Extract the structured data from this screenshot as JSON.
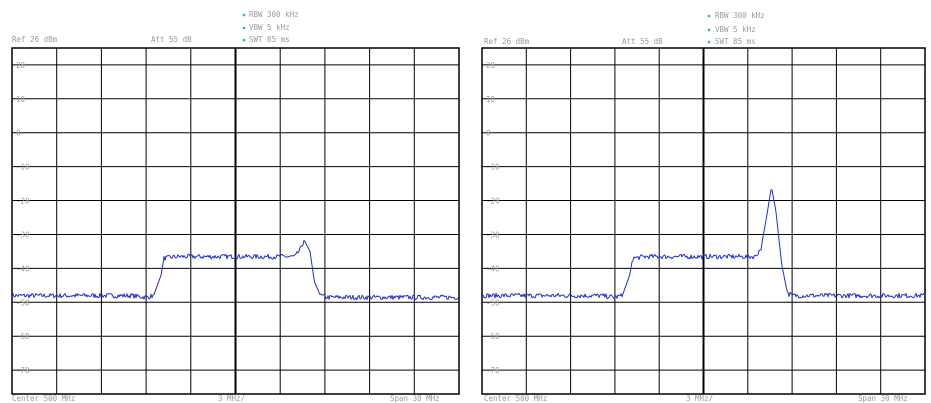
{
  "colors": {
    "trace": "#1f2fd0",
    "grid": "#000000",
    "label_text": "#9a9a9a",
    "marker_dot": "#2cc24a",
    "background": "#ffffff"
  },
  "panels": [
    {
      "ref_label": "Ref 26 dBm",
      "att_label": "Att 55 dB",
      "settings": [
        "RBW 300 kHz",
        "VBW 5 kHz",
        "SWT 85 ms"
      ],
      "footer": {
        "center": "Center 500 MHz",
        "div": "3 MHz/",
        "span": "Span 30 MHz"
      }
    },
    {
      "ref_label": "Ref 26 dBm",
      "att_label": "Att 55 dB",
      "settings": [
        "RBW 300 kHz",
        "VBW 5 kHz",
        "SWT 85 ms"
      ],
      "footer": {
        "center": "Center 500 MHz",
        "div": "3 MHz/",
        "span": "Span 30 MHz"
      }
    }
  ],
  "chart_data": [
    {
      "type": "line",
      "x_unit": "MHz",
      "y_unit": "dBm",
      "xlim": [
        485,
        515
      ],
      "ylim": [
        -76,
        26
      ],
      "y_ticks": [
        20,
        10,
        0,
        -10,
        -20,
        -30,
        -40,
        -50,
        -60,
        -70
      ],
      "grid": true,
      "series": [
        {
          "x": [
            485,
            486,
            487,
            488,
            489,
            490,
            491,
            492,
            493,
            494,
            494.5,
            495,
            495.2,
            496,
            497,
            498,
            499,
            500,
            501,
            502,
            503,
            504,
            504.4,
            504.6,
            505.0,
            505.3,
            505.7,
            506.2,
            507,
            508,
            509,
            510,
            511,
            512,
            513,
            514,
            515
          ],
          "y": [
            -47,
            -47,
            -47,
            -47,
            -47,
            -47,
            -47,
            -47,
            -47,
            -47.5,
            -47,
            -41,
            -36,
            -35.5,
            -35.5,
            -35.5,
            -35.5,
            -35.5,
            -35.5,
            -35.5,
            -35.5,
            -35.5,
            -33,
            -30.5,
            -34,
            -43,
            -47,
            -47.5,
            -47.5,
            -47.5,
            -47.5,
            -47.5,
            -47.5,
            -47.5,
            -47.5,
            -47.5,
            -47.5
          ]
        }
      ]
    },
    {
      "type": "line",
      "x_unit": "MHz",
      "y_unit": "dBm",
      "xlim": [
        485,
        515
      ],
      "ylim": [
        -76,
        26
      ],
      "y_ticks": [
        20,
        10,
        0,
        -10,
        -20,
        -30,
        -40,
        -50,
        -60,
        -70
      ],
      "grid": true,
      "series": [
        {
          "x": [
            485,
            486,
            487,
            488,
            489,
            490,
            491,
            492,
            493,
            494,
            494.5,
            495,
            495.2,
            496,
            497,
            498,
            499,
            500,
            501,
            502,
            503,
            503.5,
            503.9,
            504.3,
            504.6,
            504.9,
            505.3,
            505.7,
            506.2,
            507,
            508,
            509,
            510,
            511,
            512,
            513,
            514,
            515
          ],
          "y": [
            -47,
            -47,
            -47,
            -47,
            -47,
            -47,
            -47,
            -47,
            -47,
            -47.5,
            -47,
            -41,
            -36,
            -35.5,
            -35.5,
            -35.5,
            -35.5,
            -35.5,
            -35.5,
            -35.5,
            -35.5,
            -35.5,
            -33,
            -23,
            -15,
            -22,
            -38,
            -46.5,
            -47,
            -47,
            -47,
            -47,
            -47,
            -47,
            -47,
            -47,
            -47,
            -47
          ]
        }
      ]
    }
  ]
}
